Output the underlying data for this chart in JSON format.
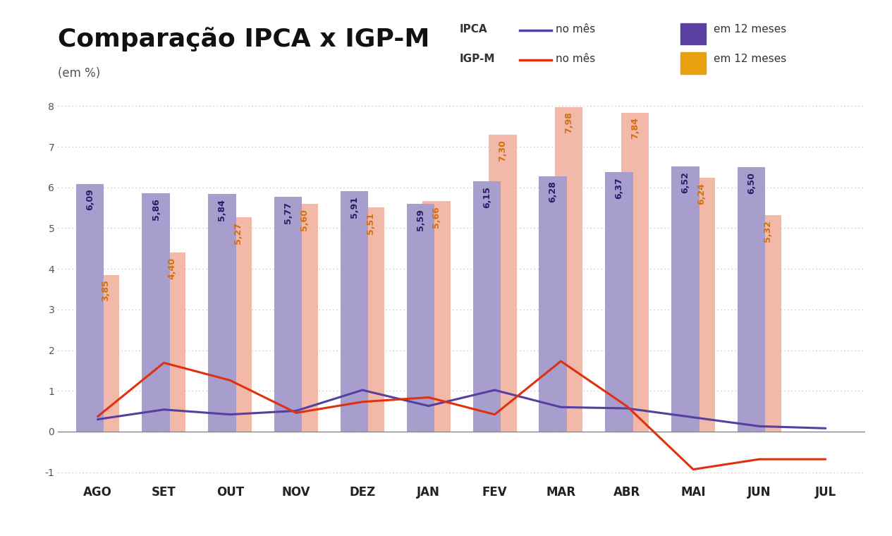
{
  "months": [
    "AGO",
    "SET",
    "OUT",
    "NOV",
    "DEZ",
    "JAN",
    "FEV",
    "MAR",
    "ABR",
    "MAI",
    "JUN",
    "JUL"
  ],
  "ipca_12m": [
    6.09,
    5.86,
    5.84,
    5.77,
    5.91,
    5.59,
    6.15,
    6.28,
    6.37,
    6.52,
    6.5,
    null
  ],
  "igpm_12m": [
    3.85,
    4.4,
    5.27,
    5.6,
    5.51,
    5.66,
    7.3,
    7.98,
    7.84,
    6.24,
    5.32,
    null
  ],
  "ipca_mes": [
    0.3,
    0.54,
    0.42,
    0.51,
    1.02,
    0.63,
    1.02,
    0.6,
    0.57,
    0.35,
    0.13,
    0.08
  ],
  "igpm_mes": [
    0.37,
    1.69,
    1.26,
    0.46,
    0.73,
    0.84,
    0.42,
    1.73,
    0.62,
    -0.93,
    -0.68,
    -0.68
  ],
  "ipca_bar_color": "#a89ece",
  "igpm_bar_color": "#f2b8a8",
  "ipca_line_color": "#5540a0",
  "igpm_line_color": "#e03010",
  "title": "Comparação IPCA x IGP-M",
  "subtitle": "(em %)",
  "ylim_min": -1.25,
  "ylim_max": 8.5,
  "yticks": [
    -1,
    0,
    1,
    2,
    3,
    4,
    5,
    6,
    7,
    8
  ],
  "bg_color": "#ffffff",
  "grid_color": "#bbbbbb",
  "ipca_12m_labels": [
    "6,09",
    "5,86",
    "5,84",
    "5,77",
    "5,91",
    "5,59",
    "6,15",
    "6,28",
    "6,37",
    "6,52",
    "6,50"
  ],
  "igpm_12m_labels": [
    "3,85",
    "4,40",
    "5,27",
    "5,60",
    "5,51",
    "5,66",
    "7,30",
    "7,98",
    "7,84",
    "6,24",
    "5,32"
  ],
  "ipca_label_color": "#2a1a6a",
  "igpm_label_color": "#d07010",
  "bar_width": 0.42,
  "legend_ipca_bar_color": "#5a3fa0",
  "legend_igpm_bar_color": "#e8a010",
  "title_fontsize": 26,
  "subtitle_fontsize": 12,
  "bar_label_fontsize": 9,
  "line_label_fontsize": 9
}
